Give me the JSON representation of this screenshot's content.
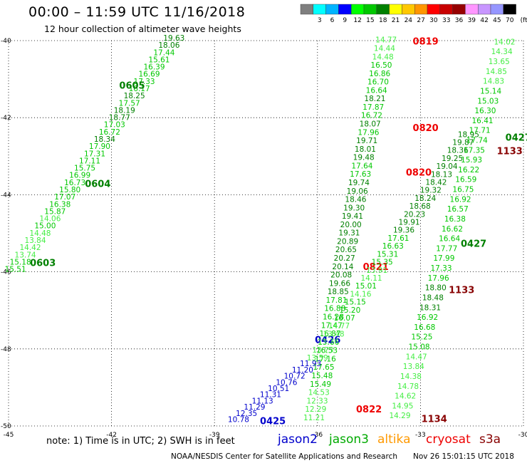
{
  "header": {
    "title": "00:00 – 11:59 UTC 11/16/2018",
    "subtitle": "12 hour collection of altimeter wave heights"
  },
  "colorbar": {
    "unit": "(ft)",
    "bins": [
      {
        "label": "",
        "color": "#7f7f7f"
      },
      {
        "label": "3",
        "color": "#00ffff"
      },
      {
        "label": "6",
        "color": "#00b4ff"
      },
      {
        "label": "9",
        "color": "#0000ff"
      },
      {
        "label": "12",
        "color": "#00ff00"
      },
      {
        "label": "15",
        "color": "#00c800"
      },
      {
        "label": "18",
        "color": "#008000"
      },
      {
        "label": "21",
        "color": "#ffff00"
      },
      {
        "label": "24",
        "color": "#ffc800"
      },
      {
        "label": "27",
        "color": "#ff9600"
      },
      {
        "label": "30",
        "color": "#ff0000"
      },
      {
        "label": "33",
        "color": "#c80000"
      },
      {
        "label": "36",
        "color": "#960000"
      },
      {
        "label": "39",
        "color": "#ff96ff"
      },
      {
        "label": "42",
        "color": "#c896ff"
      },
      {
        "label": "45",
        "color": "#9696ff"
      },
      {
        "label": "70",
        "color": "#000000"
      }
    ]
  },
  "footer": {
    "note": "note:  1) Time is in UTC;  2) SWH is in feet",
    "satellites": [
      {
        "name": "jason2",
        "color": "#0000cc"
      },
      {
        "name": "jason3",
        "color": "#00aa00"
      },
      {
        "name": "altika",
        "color": "#ff9900"
      },
      {
        "name": "cryosat",
        "color": "#ee0000"
      },
      {
        "name": "s3a",
        "color": "#880000"
      }
    ],
    "credit": "NOAA/NESDIS Center for Satellite Applications and Research",
    "generated": "Nov 26 15:01:15 UTC 2018"
  },
  "chart_data": {
    "type": "scatter",
    "title": "00:00 – 11:59 UTC 11/16/2018",
    "xlim": [
      -45,
      -30
    ],
    "ylim": [
      -50,
      -40
    ],
    "x_ticks": [
      -45,
      -42,
      -39,
      -36,
      -33,
      -30
    ],
    "y_ticks": [
      -40,
      -42,
      -44,
      -46,
      -48,
      -50
    ],
    "grid": "dotted",
    "colors": {
      "c12": "#00ff00",
      "c15": "#00c800",
      "c18": "#008000",
      "c21": "#ffff00",
      "c30": "#ff0000",
      "c33": "#c80000",
      "c9": "#0000ff"
    },
    "passes": [
      {
        "satellite": "jason3",
        "x0": -40.18,
        "y0": -40.0,
        "x1": -44.8,
        "y1": -46.0,
        "values": [
          19.63,
          18.06,
          17.44,
          15.61,
          16.39,
          16.69,
          17.33,
          16.17,
          18.25,
          17.57,
          18.19,
          18.77,
          17.03,
          16.72,
          18.34,
          17.9,
          17.31,
          17.11,
          15.75,
          16.99,
          16.73,
          15.8,
          17.07,
          16.38,
          15.87,
          14.06,
          15.0,
          14.48,
          13.84,
          14.42,
          13.74,
          15.18,
          15.51
        ],
        "time_labels": [
          {
            "t": "0605",
            "x": -41.4,
            "y": -41.25
          },
          {
            "t": "0604",
            "x": -42.4,
            "y": -43.8
          },
          {
            "t": "0603",
            "x": -44.0,
            "y": -45.85
          }
        ]
      },
      {
        "satellite": "jason3",
        "x0": -34.0,
        "y0": -40.05,
        "x1": -36.1,
        "y1": -49.85,
        "values": [
          14.77,
          14.44,
          14.48,
          16.5,
          16.86,
          16.7,
          16.64,
          18.21,
          17.87,
          16.72,
          18.07,
          17.96,
          19.71,
          18.01,
          19.48,
          17.64,
          17.63,
          19.74,
          19.06,
          18.46,
          19.3,
          19.41,
          20.0,
          19.31,
          20.89,
          20.65,
          20.27,
          20.14,
          20.08,
          19.66,
          18.85,
          17.81,
          16.88,
          16.28,
          17.47,
          16.87,
          15.66,
          16.53,
          17.16,
          17.65,
          15.48,
          15.49,
          14.53,
          12.33,
          12.29,
          11.21
        ],
        "time_labels": [
          {
            "t": "0819",
            "x": -32.85,
            "y": -40.1
          },
          {
            "t": "0820",
            "x": -32.85,
            "y": -42.35
          },
          {
            "t": "0820",
            "x": -33.05,
            "y": -43.5
          },
          {
            "t": "0821",
            "x": -34.3,
            "y": -45.95
          },
          {
            "t": "0822",
            "x": -34.5,
            "y": -49.65
          }
        ]
      },
      {
        "satellite": "jason2",
        "x0": -36.2,
        "y0": -48.45,
        "x1": -38.3,
        "y1": -49.9,
        "values": [
          11.93,
          11.2,
          10.72,
          10.76,
          10.51,
          11.31,
          11.13,
          11.29,
          12.35,
          10.78
        ],
        "time_labels": [
          {
            "t": "0426",
            "x": -35.7,
            "y": -47.85
          },
          {
            "t": "0425",
            "x": -37.3,
            "y": -49.95
          }
        ]
      },
      {
        "satellite": "jason3",
        "x0": -31.6,
        "y0": -42.5,
        "x1": -36.0,
        "y1": -48.3,
        "values": [
          18.95,
          19.87,
          18.36,
          19.25,
          19.04,
          18.13,
          18.42,
          19.32,
          18.24,
          18.68,
          20.23,
          19.91,
          19.36,
          17.61,
          16.63,
          15.31,
          15.35,
          13.91,
          14.11,
          15.01,
          14.16,
          15.15,
          15.2,
          16.07,
          14.77,
          13.48,
          13.76,
          13.73,
          13.59
        ],
        "time_labels": [
          {
            "t": "0427",
            "x": -31.45,
            "y": -45.35
          },
          {
            "t": "0427",
            "x": -30.15,
            "y": -42.6
          }
        ]
      },
      {
        "satellite": "jason3",
        "x0": -30.55,
        "y0": -40.1,
        "x1": -33.6,
        "y1": -49.8,
        "values": [
          14.02,
          14.34,
          13.65,
          14.85,
          14.83,
          15.14,
          15.03,
          16.3,
          16.41,
          17.71,
          17.74,
          17.35,
          15.93,
          16.22,
          16.59,
          16.75,
          16.92,
          16.57,
          16.38,
          16.62,
          16.64,
          17.77,
          17.99,
          17.33,
          17.96,
          18.8,
          18.48,
          18.31,
          16.92,
          16.68,
          15.25,
          15.08,
          14.47,
          13.84,
          14.38,
          14.78,
          14.62,
          14.95,
          14.29
        ],
        "time_labels": [
          {
            "t": "1133",
            "x": -31.8,
            "y": -46.55
          },
          {
            "t": "1134",
            "x": -32.6,
            "y": -49.9
          },
          {
            "t": "1133",
            "x": -30.4,
            "y": -42.95
          }
        ]
      }
    ]
  }
}
